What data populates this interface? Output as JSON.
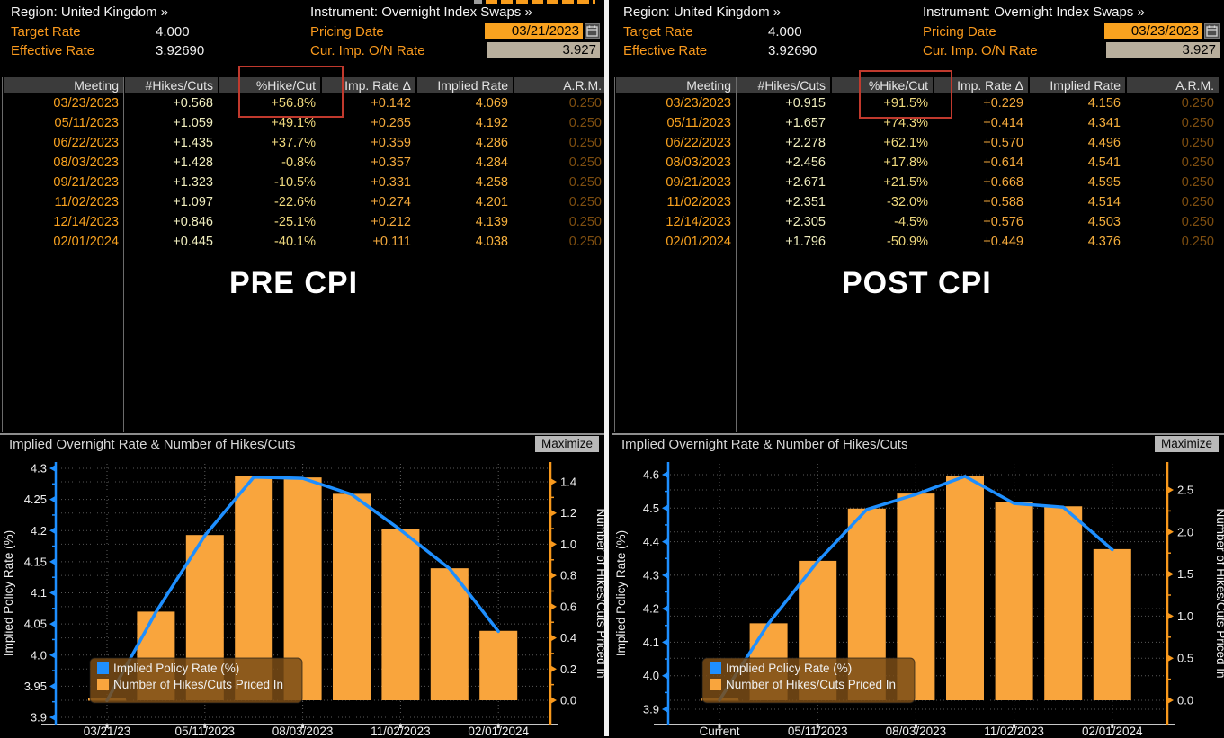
{
  "app": "Bloomberg WIRP - World Interest Rate Probability (UK OIS) comparison",
  "colors": {
    "amber": "#f8991d",
    "date_input_bg": "#f9a21f",
    "readonly_bg": "#b9af9d",
    "line_blue": "#1e8fff",
    "bar_orange": "#f9a53d",
    "annotation_red": "#c0392d",
    "header_row_bg": "#3b3b3b"
  },
  "table_column_colors": [
    "#f9a21f",
    "#efedbe",
    "#efd97e",
    "#f4a93c",
    "#f4ae3c",
    "#7e4e10"
  ],
  "panels": [
    {
      "annotation": "PRE CPI",
      "header": {
        "region": "Region: United Kingdom »",
        "instrument": "Instrument: Overnight Index Swaps »",
        "target_rate_label": "Target Rate",
        "target_rate_value": "4.000",
        "effective_rate_label": "Effective Rate",
        "effective_rate_value": "3.92690",
        "pricing_date_label": "Pricing Date",
        "pricing_date_value": "03/21/2023",
        "cur_imp_label": "Cur. Imp. O/N Rate",
        "cur_imp_value": "3.927"
      },
      "table": {
        "columns": [
          "Meeting",
          "#Hikes/Cuts",
          "%Hike/Cut",
          "Imp. Rate Δ",
          "Implied Rate",
          "A.R.M."
        ],
        "rows": [
          [
            "03/23/2023",
            "+0.568",
            "+56.8%",
            "+0.142",
            "4.069",
            "0.250"
          ],
          [
            "05/11/2023",
            "+1.059",
            "+49.1%",
            "+0.265",
            "4.192",
            "0.250"
          ],
          [
            "06/22/2023",
            "+1.435",
            "+37.7%",
            "+0.359",
            "4.286",
            "0.250"
          ],
          [
            "08/03/2023",
            "+1.428",
            "-0.8%",
            "+0.357",
            "4.284",
            "0.250"
          ],
          [
            "09/21/2023",
            "+1.323",
            "-10.5%",
            "+0.331",
            "4.258",
            "0.250"
          ],
          [
            "11/02/2023",
            "+1.097",
            "-22.6%",
            "+0.274",
            "4.201",
            "0.250"
          ],
          [
            "12/14/2023",
            "+0.846",
            "-25.1%",
            "+0.212",
            "4.139",
            "0.250"
          ],
          [
            "02/01/2024",
            "+0.445",
            "-40.1%",
            "+0.111",
            "4.038",
            "0.250"
          ]
        ]
      },
      "chart_title": "Implied Overnight Rate & Number of Hikes/Cuts",
      "maximize_label": "Maximize"
    },
    {
      "annotation": "POST CPI",
      "header": {
        "region": "Region: United Kingdom »",
        "instrument": "Instrument: Overnight Index Swaps »",
        "target_rate_label": "Target Rate",
        "target_rate_value": "4.000",
        "effective_rate_label": "Effective Rate",
        "effective_rate_value": "3.92690",
        "pricing_date_label": "Pricing Date",
        "pricing_date_value": "03/23/2023",
        "cur_imp_label": "Cur. Imp. O/N Rate",
        "cur_imp_value": "3.927"
      },
      "table": {
        "columns": [
          "Meeting",
          "#Hikes/Cuts",
          "%Hike/Cut",
          "Imp. Rate Δ",
          "Implied Rate",
          "A.R.M."
        ],
        "rows": [
          [
            "03/23/2023",
            "+0.915",
            "+91.5%",
            "+0.229",
            "4.156",
            "0.250"
          ],
          [
            "05/11/2023",
            "+1.657",
            "+74.3%",
            "+0.414",
            "4.341",
            "0.250"
          ],
          [
            "06/22/2023",
            "+2.278",
            "+62.1%",
            "+0.570",
            "4.496",
            "0.250"
          ],
          [
            "08/03/2023",
            "+2.456",
            "+17.8%",
            "+0.614",
            "4.541",
            "0.250"
          ],
          [
            "09/21/2023",
            "+2.671",
            "+21.5%",
            "+0.668",
            "4.595",
            "0.250"
          ],
          [
            "11/02/2023",
            "+2.351",
            "-32.0%",
            "+0.588",
            "4.514",
            "0.250"
          ],
          [
            "12/14/2023",
            "+2.305",
            "-4.5%",
            "+0.576",
            "4.503",
            "0.250"
          ],
          [
            "02/01/2024",
            "+1.796",
            "-50.9%",
            "+0.449",
            "4.376",
            "0.250"
          ]
        ]
      },
      "chart_title": "Implied Overnight Rate & Number of Hikes/Cuts",
      "maximize_label": "Maximize"
    }
  ],
  "chart_data": [
    {
      "type": "bar+line",
      "title": "Implied Overnight Rate & Number of Hikes/Cuts",
      "x_tick_labels": [
        {
          "slot": 0,
          "label": "03/21/23"
        },
        {
          "slot": 2,
          "label": "05/11/2023"
        },
        {
          "slot": 4,
          "label": "08/03/2023"
        },
        {
          "slot": 6,
          "label": "11/02/2023"
        },
        {
          "slot": 8,
          "label": "02/01/2024"
        }
      ],
      "left_axis": {
        "label": "Implied Policy Rate (%)",
        "min": 3.9,
        "max": 4.3,
        "step": 0.05,
        "color": "#1e8fff"
      },
      "right_axis": {
        "label": "Number of Hikes/Cuts Priced In",
        "min": 0.0,
        "max": 1.4,
        "step": 0.2,
        "color": "#f8991d"
      },
      "series": [
        {
          "name": "Implied Policy Rate (%)",
          "type": "line",
          "axis": "left",
          "color": "#1e8fff",
          "values": [
            3.927,
            4.069,
            4.192,
            4.286,
            4.284,
            4.258,
            4.201,
            4.139,
            4.038
          ]
        },
        {
          "name": "Number of Hikes/Cuts Priced In",
          "type": "bar",
          "axis": "right",
          "color": "#f9a53d",
          "values": [
            0.0,
            0.568,
            1.059,
            1.435,
            1.428,
            1.323,
            1.097,
            0.846,
            0.445
          ]
        }
      ],
      "legend_position": "bottom-left",
      "grid": true
    },
    {
      "type": "bar+line",
      "title": "Implied Overnight Rate & Number of Hikes/Cuts",
      "x_tick_labels": [
        {
          "slot": 0,
          "label": "Current"
        },
        {
          "slot": 2,
          "label": "05/11/2023"
        },
        {
          "slot": 4,
          "label": "08/03/2023"
        },
        {
          "slot": 6,
          "label": "11/02/2023"
        },
        {
          "slot": 8,
          "label": "02/01/2024"
        }
      ],
      "left_axis": {
        "label": "Implied Policy Rate (%)",
        "min": 3.9,
        "max": 4.6,
        "step": 0.1,
        "color": "#1e8fff"
      },
      "right_axis": {
        "label": "Number of Hikes/Cuts Priced In",
        "min": 0.0,
        "max": 2.5,
        "step": 0.5,
        "color": "#f8991d"
      },
      "series": [
        {
          "name": "Implied Policy Rate (%)",
          "type": "line",
          "axis": "left",
          "color": "#1e8fff",
          "values": [
            3.927,
            4.156,
            4.341,
            4.496,
            4.541,
            4.595,
            4.514,
            4.503,
            4.376
          ]
        },
        {
          "name": "Number of Hikes/Cuts Priced In",
          "type": "bar",
          "axis": "right",
          "color": "#f9a53d",
          "values": [
            0.0,
            0.915,
            1.657,
            2.278,
            2.456,
            2.671,
            2.351,
            2.305,
            1.796
          ]
        }
      ],
      "legend_position": "bottom-left",
      "grid": true
    }
  ]
}
